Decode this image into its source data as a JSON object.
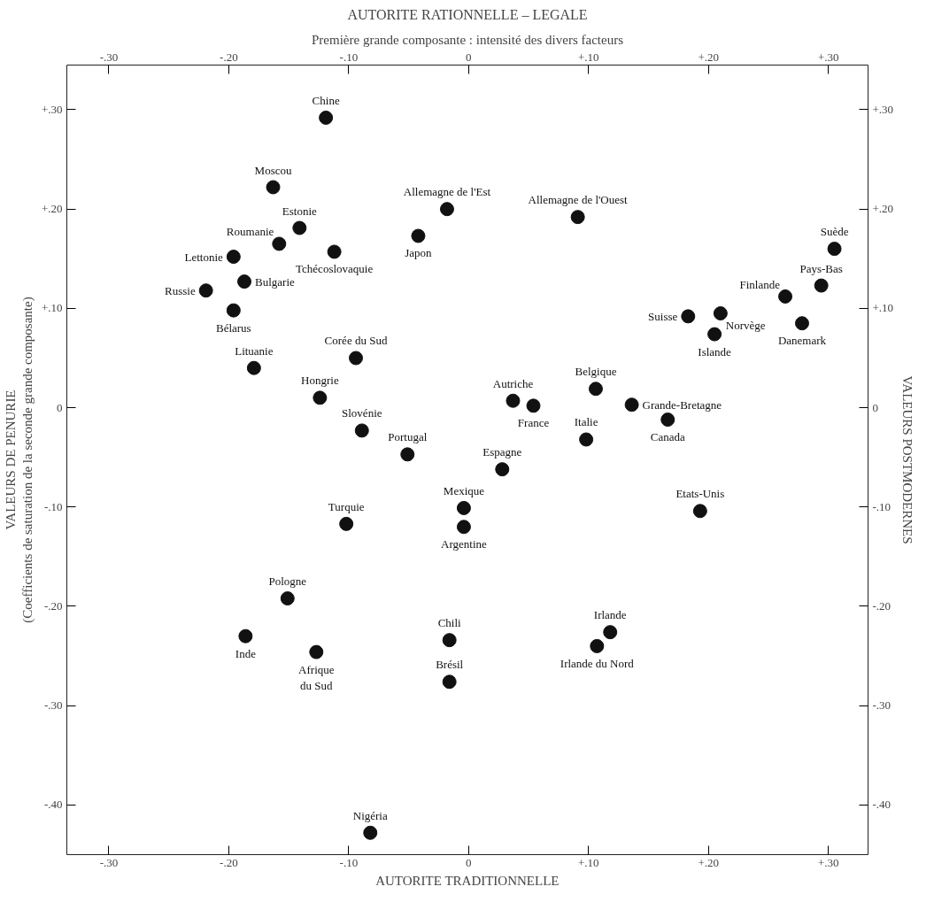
{
  "chart_data": {
    "type": "scatter",
    "title": "AUTORITE RATIONNELLE – LEGALE",
    "subtitle": "Première grande composante : intensité des divers facteurs",
    "xlabel": "AUTORITE TRADITIONNELLE",
    "ylabel": "VALEURS DE PENURIE\n(Coefficients de saturation de la seconde grande composante)",
    "y2label": "VALEURS POSTMODERNES",
    "marker": "circle",
    "grid": false,
    "xlim": [
      -0.335,
      0.333
    ],
    "ylim": [
      -0.45,
      0.345
    ],
    "x2lim": [
      -0.335,
      0.333
    ],
    "y2lim": [
      -0.45,
      0.345
    ],
    "xticks": [
      {
        "value": -0.3,
        "label": "-.30"
      },
      {
        "value": -0.2,
        "label": "-.20"
      },
      {
        "value": -0.1,
        "label": "-.10"
      },
      0,
      {
        "value": 0.1,
        "label": "+.10"
      },
      {
        "value": 0.2,
        "label": "+.20"
      },
      {
        "value": 0.3,
        "label": "+.30"
      }
    ],
    "x2ticks": [
      {
        "value": -0.3,
        "label": "-.30"
      },
      {
        "value": -0.2,
        "label": "-.20"
      },
      {
        "value": -0.1,
        "label": "-.10"
      },
      0,
      {
        "value": 0.1,
        "label": "+.10"
      },
      {
        "value": 0.2,
        "label": "+.20"
      },
      {
        "value": 0.3,
        "label": "+.30"
      }
    ],
    "yticks": [
      {
        "value": 0.3,
        "label": "+.30"
      },
      {
        "value": 0.2,
        "label": "+.20"
      },
      {
        "value": 0.1,
        "label": "+.10"
      },
      0,
      {
        "value": -0.1,
        "label": "-.10"
      },
      {
        "value": -0.2,
        "label": "-.20"
      },
      {
        "value": -0.3,
        "label": "-.30"
      },
      {
        "value": -0.4,
        "label": "-.40"
      }
    ],
    "y2ticks": [
      {
        "value": 0.3,
        "label": "+.30"
      },
      {
        "value": 0.2,
        "label": "+.20"
      },
      {
        "value": 0.1,
        "label": "+.10"
      },
      0,
      {
        "value": -0.1,
        "label": "-.10"
      },
      {
        "value": -0.2,
        "label": "-.20"
      },
      {
        "value": -0.3,
        "label": "-.30"
      },
      {
        "value": -0.4,
        "label": "-.40"
      }
    ],
    "series": [
      {
        "color": "#111111",
        "x": [
          -0.119,
          -0.163,
          -0.141,
          -0.158,
          -0.196,
          -0.112,
          -0.042,
          -0.018,
          -0.219,
          -0.187,
          -0.196,
          -0.179,
          -0.094,
          -0.124,
          -0.089,
          -0.051,
          -0.004,
          -0.004,
          -0.102,
          -0.151,
          -0.186,
          -0.127,
          -0.016,
          -0.016,
          -0.082,
          0.091,
          0.305,
          0.294,
          0.264,
          0.183,
          0.21,
          0.278,
          0.205,
          0.037,
          0.054,
          0.106,
          0.136,
          0.166,
          0.098,
          0.028,
          0.193,
          0.118,
          0.107
        ],
        "values": [
          0.292,
          0.222,
          0.181,
          0.165,
          0.152,
          0.157,
          0.173,
          0.2,
          0.118,
          0.127,
          0.098,
          0.04,
          0.05,
          0.01,
          -0.023,
          -0.047,
          -0.101,
          -0.12,
          -0.117,
          -0.192,
          -0.23,
          -0.246,
          -0.234,
          -0.276,
          -0.428,
          0.192,
          0.16,
          0.123,
          0.112,
          0.092,
          0.095,
          0.085,
          0.074,
          0.007,
          0.002,
          0.019,
          0.003,
          -0.012,
          -0.032,
          -0.062,
          -0.104,
          -0.226,
          -0.24
        ]
      }
    ],
    "annotations": [
      {
        "text": "Chine",
        "x": -0.119,
        "y": 0.292
      },
      {
        "text": "Moscou",
        "x": -0.163,
        "y": 0.222
      },
      {
        "text": "Estonie",
        "x": -0.141,
        "y": 0.181
      },
      {
        "text": "Roumanie",
        "x": -0.158,
        "y": 0.165
      },
      {
        "text": "Lettonie",
        "x": -0.196,
        "y": 0.152
      },
      {
        "text": "Tchécoslovaquie",
        "x": -0.112,
        "y": 0.157
      },
      {
        "text": "Japon",
        "x": -0.042,
        "y": 0.173
      },
      {
        "text": "Allemagne de l'Est",
        "x": -0.018,
        "y": 0.2
      },
      {
        "text": "Russie",
        "x": -0.219,
        "y": 0.118
      },
      {
        "text": "Bulgarie",
        "x": -0.187,
        "y": 0.127
      },
      {
        "text": "Bélarus",
        "x": -0.196,
        "y": 0.098
      },
      {
        "text": "Lituanie",
        "x": -0.179,
        "y": 0.04
      },
      {
        "text": "Corée du Sud",
        "x": -0.094,
        "y": 0.05
      },
      {
        "text": "Hongrie",
        "x": -0.124,
        "y": 0.01
      },
      {
        "text": "Slovénie",
        "x": -0.089,
        "y": -0.023
      },
      {
        "text": "Portugal",
        "x": -0.051,
        "y": -0.047
      },
      {
        "text": "Mexique",
        "x": -0.004,
        "y": -0.101
      },
      {
        "text": "Argentine",
        "x": -0.004,
        "y": -0.12
      },
      {
        "text": "Turquie",
        "x": -0.102,
        "y": -0.117
      },
      {
        "text": "Pologne",
        "x": -0.151,
        "y": -0.192
      },
      {
        "text": "Inde",
        "x": -0.186,
        "y": -0.23
      },
      {
        "text": "Afrique\ndu Sud",
        "x": -0.127,
        "y": -0.246
      },
      {
        "text": "Chili",
        "x": -0.016,
        "y": -0.234
      },
      {
        "text": "Brésil",
        "x": -0.016,
        "y": -0.276
      },
      {
        "text": "Nigéria",
        "x": -0.082,
        "y": -0.428
      },
      {
        "text": "Allemagne de l'Ouest",
        "x": 0.091,
        "y": 0.192
      },
      {
        "text": "Suède",
        "x": 0.305,
        "y": 0.16
      },
      {
        "text": "Pays-Bas",
        "x": 0.294,
        "y": 0.123
      },
      {
        "text": "Finlande",
        "x": 0.264,
        "y": 0.112
      },
      {
        "text": "Suisse",
        "x": 0.183,
        "y": 0.092
      },
      {
        "text": "Norvège",
        "x": 0.21,
        "y": 0.095
      },
      {
        "text": "Danemark",
        "x": 0.278,
        "y": 0.085
      },
      {
        "text": "Islande",
        "x": 0.205,
        "y": 0.074
      },
      {
        "text": "Autriche",
        "x": 0.037,
        "y": 0.007
      },
      {
        "text": "France",
        "x": 0.054,
        "y": 0.002
      },
      {
        "text": "Belgique",
        "x": 0.106,
        "y": 0.019
      },
      {
        "text": "Grande-Bretagne",
        "x": 0.136,
        "y": 0.003
      },
      {
        "text": "Canada",
        "x": 0.166,
        "y": -0.012
      },
      {
        "text": "Italie",
        "x": 0.098,
        "y": -0.032
      },
      {
        "text": "Espagne",
        "x": 0.028,
        "y": -0.062
      },
      {
        "text": "Etats-Unis",
        "x": 0.193,
        "y": -0.104
      },
      {
        "text": "Irlande",
        "x": 0.118,
        "y": -0.226
      },
      {
        "text": "Irlande du Nord",
        "x": 0.107,
        "y": -0.24
      }
    ]
  }
}
